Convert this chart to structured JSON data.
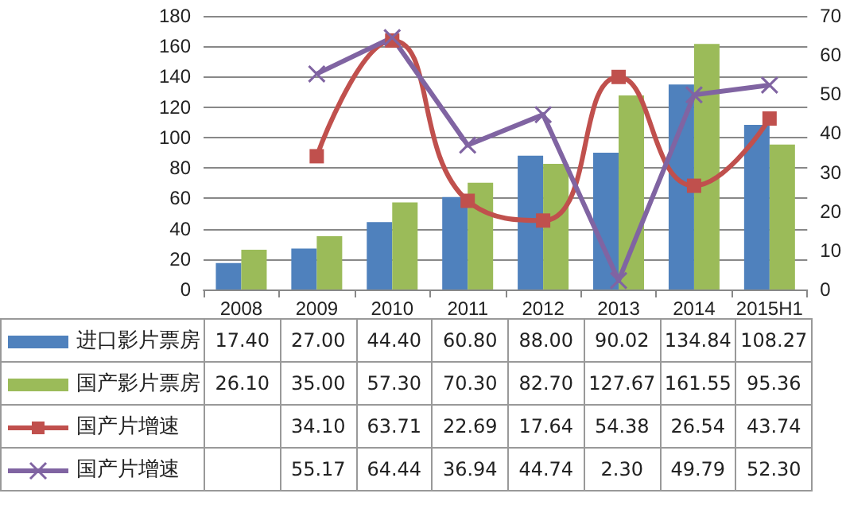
{
  "chart_data": {
    "type": "bar",
    "categories": [
      "2008",
      "2009",
      "2010",
      "2011",
      "2012",
      "2013",
      "2014",
      "2015H1"
    ],
    "series": [
      {
        "name": "进口影片票房",
        "color": "#4f81bd",
        "values": [
          17.4,
          27.0,
          44.4,
          60.8,
          88.0,
          90.02,
          134.84,
          108.27
        ],
        "value_labels": [
          "17.40",
          "27.00",
          "44.40",
          "60.80",
          "88.00",
          "90.02",
          "134.84",
          "108.27"
        ]
      },
      {
        "name": "国产影片票房",
        "color": "#9bbb59",
        "values": [
          26.1,
          35.0,
          57.3,
          70.3,
          82.7,
          127.67,
          161.55,
          95.36
        ],
        "value_labels": [
          "26.10",
          "35.00",
          "57.30",
          "70.30",
          "82.70",
          "127.67",
          "161.55",
          "95.36"
        ]
      },
      {
        "name": "国产片增速",
        "type": "line",
        "axis": "y2",
        "marker": "square",
        "color": "#c0504d",
        "values": [
          null,
          34.1,
          63.71,
          22.69,
          17.64,
          54.38,
          26.54,
          43.74
        ],
        "value_labels": [
          null,
          "34.10",
          "63.71",
          "22.69",
          "17.64",
          "54.38",
          "26.54",
          "43.74"
        ]
      },
      {
        "name": "国产片增速",
        "type": "line",
        "axis": "y2",
        "marker": "cross",
        "color": "#8064a2",
        "values": [
          null,
          55.17,
          64.44,
          36.94,
          44.74,
          2.3,
          49.79,
          52.3
        ],
        "value_labels": [
          null,
          "55.17",
          "64.44",
          "36.94",
          "44.74",
          "2.30",
          "49.79",
          "52.30"
        ]
      }
    ],
    "ylim": [
      0,
      180
    ],
    "yticks": [
      0,
      20,
      40,
      60,
      80,
      100,
      120,
      140,
      160,
      180
    ],
    "y2lim": [
      0,
      70
    ],
    "y2ticks": [
      0,
      10,
      20,
      30,
      40,
      50,
      60,
      70
    ],
    "grid": "y",
    "legend": "bottom"
  }
}
